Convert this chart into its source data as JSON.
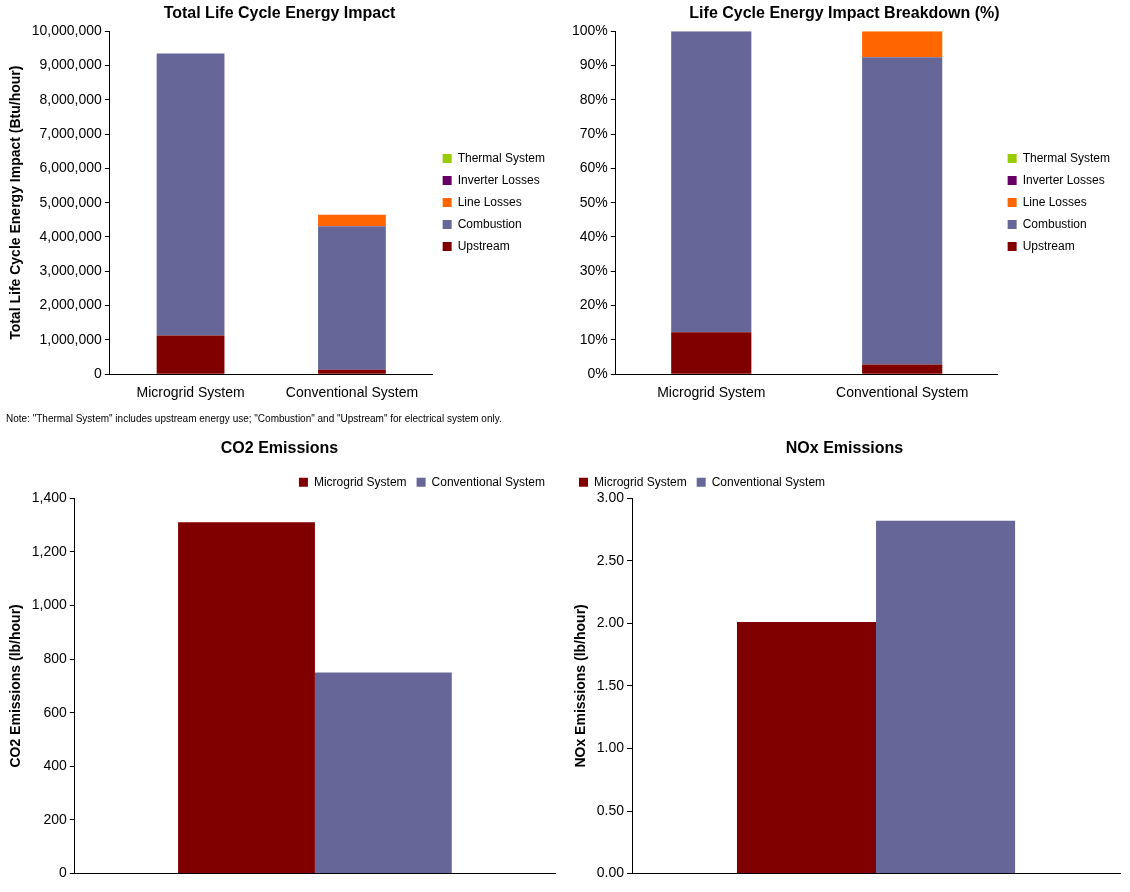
{
  "chart_data": [
    {
      "type": "bar",
      "title": "Total Life Cycle Energy Impact",
      "ylabel": "Total Life Cycle Energy Impact (Btu/hour)",
      "categories": [
        "Microgrid System",
        "Conventional System"
      ],
      "stacked": true,
      "legend": "right",
      "grid": false,
      "series": [
        {
          "name": "Upstream",
          "color": "#800000",
          "values": [
            1130000,
            130000
          ]
        },
        {
          "name": "Combustion",
          "color": "#666699",
          "values": [
            8220000,
            4180000
          ]
        },
        {
          "name": "Line Losses",
          "color": "#ff6600",
          "values": [
            0,
            340000
          ]
        },
        {
          "name": "Inverter Losses",
          "color": "#660066",
          "values": [
            0,
            0
          ]
        },
        {
          "name": "Thermal System",
          "color": "#99cc00",
          "values": [
            0,
            0
          ]
        }
      ],
      "ylim": [
        0,
        10000000
      ],
      "yticks": [
        0,
        {
          "value": 1000000,
          "label": "1,000,000"
        },
        {
          "value": 2000000,
          "label": "2,000,000"
        },
        {
          "value": 3000000,
          "label": "3,000,000"
        },
        {
          "value": 4000000,
          "label": "4,000,000"
        },
        {
          "value": 5000000,
          "label": "5,000,000"
        },
        {
          "value": 6000000,
          "label": "6,000,000"
        },
        {
          "value": 7000000,
          "label": "7,000,000"
        },
        {
          "value": 8000000,
          "label": "8,000,000"
        },
        {
          "value": 9000000,
          "label": "9,000,000"
        },
        {
          "value": 10000000,
          "label": "10,000,000"
        }
      ],
      "annotations": [
        "Note: \"Thermal System\" includes upstream energy use; \"Combustion\" and \"Upstream\" for electrical system only."
      ]
    },
    {
      "type": "bar",
      "title": "Life Cycle Energy Impact Breakdown (%)",
      "categories": [
        "Microgrid System",
        "Conventional System"
      ],
      "stacked": true,
      "legend": "right",
      "grid": false,
      "series": [
        {
          "name": "Upstream",
          "color": "#800000",
          "values": [
            12.2,
            2.8
          ]
        },
        {
          "name": "Combustion",
          "color": "#666699",
          "values": [
            87.8,
            89.6
          ]
        },
        {
          "name": "Line Losses",
          "color": "#ff6600",
          "values": [
            0,
            7.6
          ]
        },
        {
          "name": "Inverter Losses",
          "color": "#660066",
          "values": [
            0,
            0
          ]
        },
        {
          "name": "Thermal System",
          "color": "#99cc00",
          "values": [
            0,
            0
          ]
        }
      ],
      "ylim": [
        0,
        100
      ],
      "yticks": [
        {
          "value": 0,
          "label": "0%"
        },
        {
          "value": 10,
          "label": "10%"
        },
        {
          "value": 20,
          "label": "20%"
        },
        {
          "value": 30,
          "label": "30%"
        },
        {
          "value": 40,
          "label": "40%"
        },
        {
          "value": 50,
          "label": "50%"
        },
        {
          "value": 60,
          "label": "60%"
        },
        {
          "value": 70,
          "label": "70%"
        },
        {
          "value": 80,
          "label": "80%"
        },
        {
          "value": 90,
          "label": "90%"
        },
        {
          "value": 100,
          "label": "100%"
        }
      ]
    },
    {
      "type": "bar",
      "title": "CO2 Emissions",
      "ylabel": "CO2 Emissions (lb/hour)",
      "categories": [
        null
      ],
      "legend": "top right",
      "grid": false,
      "tick_labels": "y",
      "series": [
        {
          "name": "Microgrid System",
          "color": "#800000",
          "values": [
            1310
          ]
        },
        {
          "name": "Conventional System",
          "color": "#666699",
          "values": [
            750
          ]
        }
      ],
      "ylim": [
        0,
        1400
      ],
      "yticks": [
        0,
        200,
        400,
        600,
        800,
        {
          "value": 1000,
          "label": "1,000"
        },
        {
          "value": 1200,
          "label": "1,200"
        },
        {
          "value": 1400,
          "label": "1,400"
        }
      ]
    },
    {
      "type": "bar",
      "title": "NOx Emissions",
      "ylabel": "NOx Emissions (lb/hour)",
      "categories": [
        null
      ],
      "legend": "top left",
      "grid": false,
      "tick_labels": "y",
      "series": [
        {
          "name": "Microgrid System",
          "color": "#800000",
          "values": [
            2.01
          ]
        },
        {
          "name": "Conventional System",
          "color": "#666699",
          "values": [
            2.82
          ]
        }
      ],
      "ylim": [
        0,
        3
      ],
      "yticks": [
        {
          "value": 0,
          "label": "0.00"
        },
        {
          "value": 0.5,
          "label": "0.50"
        },
        {
          "value": 1,
          "label": "1.00"
        },
        {
          "value": 1.5,
          "label": "1.50"
        },
        {
          "value": 2,
          "label": "2.00"
        },
        {
          "value": 2.5,
          "label": "2.50"
        },
        {
          "value": 3,
          "label": "3.00"
        }
      ]
    }
  ]
}
